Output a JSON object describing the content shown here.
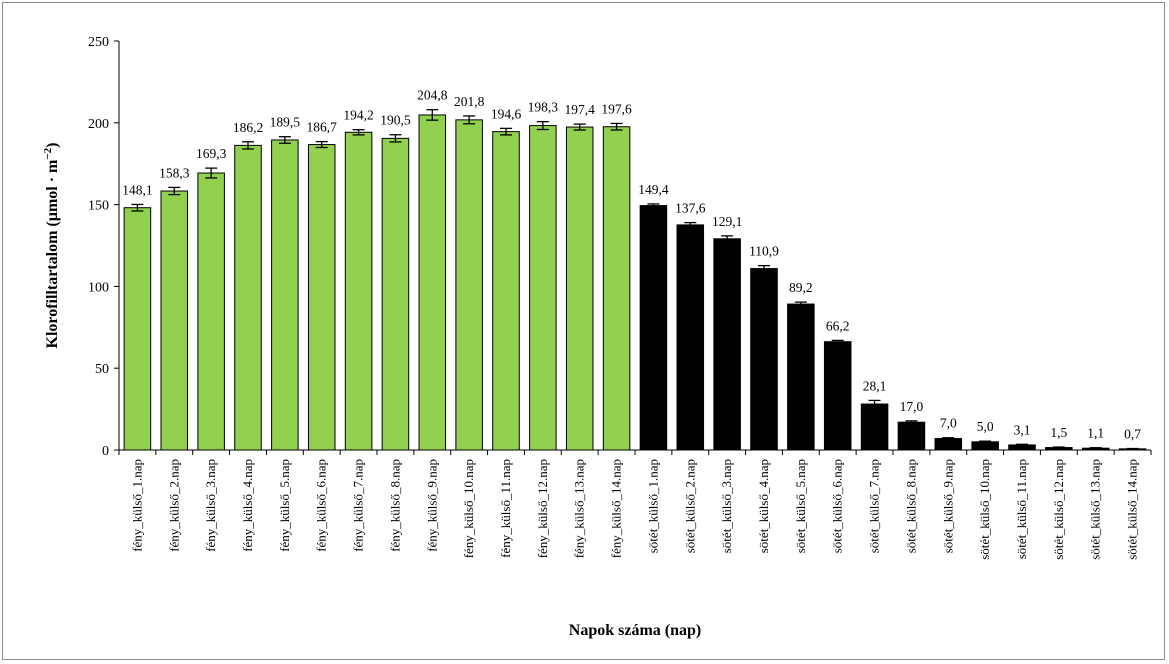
{
  "chart_data": {
    "type": "bar",
    "categories": [
      "fény_külső_1.nap",
      "fény_külső_2.nap",
      "fény_külső_3.nap",
      "fény_külső_4.nap",
      "fény_külső_5.nap",
      "fény_külső_6.nap",
      "fény_külső_7.nap",
      "fény_külső_8.nap",
      "fény_külső_9.nap",
      "fény_külső_10.nap",
      "fény_külső_11.nap",
      "fény_külső_12.nap",
      "fény_külső_13.nap",
      "fény_külső_14.nap",
      "sötét_külső_1.nap",
      "sötét_külső_2.nap",
      "sötét_külső_3.nap",
      "sötét_külső_4.nap",
      "sötét_külső_5.nap",
      "sötét_külső_6.nap",
      "sötét_külső_7.nap",
      "sötét_külső_8.nap",
      "sötét_külső_9.nap",
      "sötét_külső_10.nap",
      "sötét_külső_11.nap",
      "sötét_külső_12.nap",
      "sötét_külső_13.nap",
      "sötét_külső_14.nap"
    ],
    "values": [
      148.1,
      158.3,
      169.3,
      186.2,
      189.5,
      186.7,
      194.2,
      190.5,
      204.8,
      201.8,
      194.6,
      198.3,
      197.4,
      197.6,
      149.4,
      137.6,
      129.1,
      110.9,
      89.2,
      66.2,
      28.1,
      17.0,
      7.0,
      5.0,
      3.1,
      1.5,
      1.1,
      0.7
    ],
    "value_labels": [
      "148,1",
      "158,3",
      "169,3",
      "186,2",
      "189,5",
      "186,7",
      "194,2",
      "190,5",
      "204,8",
      "201,8",
      "194,6",
      "198,3",
      "197,4",
      "197,6",
      "149,4",
      "137,6",
      "129,1",
      "110,9",
      "89,2",
      "66,2",
      "28,1",
      "17,0",
      "7,0",
      "5,0",
      "3,1",
      "1,5",
      "1,1",
      "0,7"
    ],
    "errors": [
      2.0,
      2.2,
      3.0,
      2.2,
      2.0,
      1.8,
      1.6,
      2.2,
      3.2,
      2.4,
      2.0,
      2.4,
      1.8,
      2.0,
      1.0,
      1.4,
      1.8,
      1.8,
      1.2,
      0.8,
      2.2,
      0.8,
      0.5,
      0.4,
      0.4,
      0.3,
      0.3,
      0.2
    ],
    "colors": [
      "#92d050",
      "#92d050",
      "#92d050",
      "#92d050",
      "#92d050",
      "#92d050",
      "#92d050",
      "#92d050",
      "#92d050",
      "#92d050",
      "#92d050",
      "#92d050",
      "#92d050",
      "#92d050",
      "#000000",
      "#000000",
      "#000000",
      "#000000",
      "#000000",
      "#000000",
      "#000000",
      "#000000",
      "#000000",
      "#000000",
      "#000000",
      "#000000",
      "#000000",
      "#000000"
    ],
    "xlabel": "Napok száma (nap)",
    "ylabel": "Klorofilltartalom (µmol · m",
    "ylabel_sup": "−2",
    "ylabel_close": ")",
    "ylim": [
      0,
      250
    ],
    "yticks": [
      0,
      50,
      100,
      150,
      200,
      250
    ],
    "grid": false,
    "legend": "none"
  }
}
